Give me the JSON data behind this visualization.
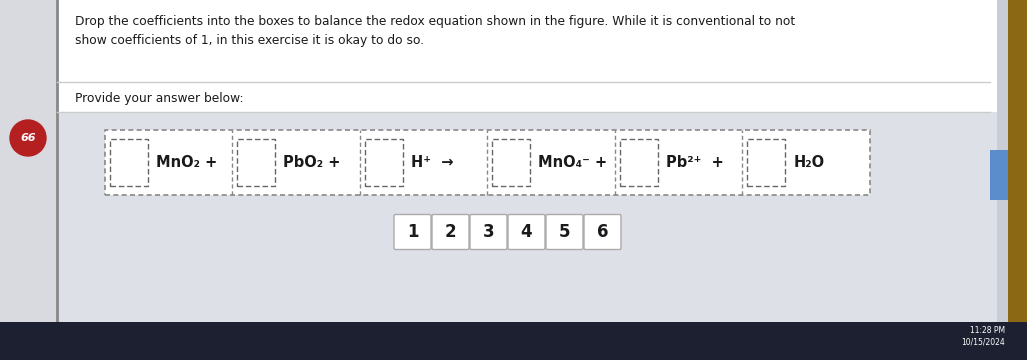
{
  "bg_outer": "#c8cdd6",
  "bg_panel": "#e8eaee",
  "white": "#ffffff",
  "title_text": "Drop the coefficients into the boxes to balance the redox equation shown in the figure. While it is conventional to not\nshow coefficients of 1, in this exercise it is okay to do so.",
  "provide_text": "Provide your answer below:",
  "circle_number": "66",
  "circle_color": "#b42020",
  "equation_labels": [
    "MnO₂ +",
    "PbO₂ +",
    "H⁺  →",
    "MnO₄⁻ +",
    "Pb²⁺  +",
    "H₂O"
  ],
  "coefficients": [
    "1",
    "2",
    "3",
    "4",
    "5",
    "6"
  ],
  "font_color": "#1a1a1a",
  "divider_color": "#aaaaaa",
  "time_text": "11:28 PM\n10/15/2024",
  "taskbar_color": "#1c2030"
}
